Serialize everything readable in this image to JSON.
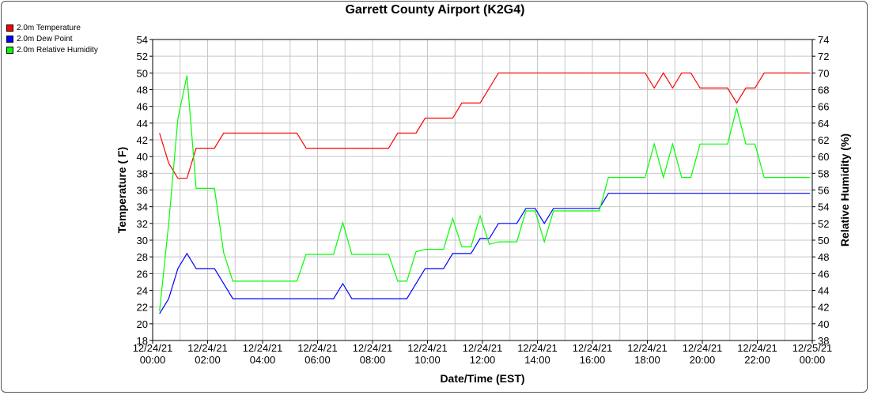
{
  "chart_data": {
    "type": "line",
    "title": "Garrett County Airport (K2G4)",
    "xlabel": "Date/Time (EST)",
    "ylabel_left": "Temperature ( F)",
    "ylabel_right": "Relative Humidity (%)",
    "ylim_left": [
      18,
      54
    ],
    "ylim_right": [
      38,
      74
    ],
    "xlim_hours": [
      0,
      24
    ],
    "grid": true,
    "legend_position": "top-left",
    "x_tick_labels": [
      {
        "date": "12/24/21",
        "time": "00:00"
      },
      {
        "date": "12/24/21",
        "time": "02:00"
      },
      {
        "date": "12/24/21",
        "time": "04:00"
      },
      {
        "date": "12/24/21",
        "time": "06:00"
      },
      {
        "date": "12/24/21",
        "time": "08:00"
      },
      {
        "date": "12/24/21",
        "time": "10:00"
      },
      {
        "date": "12/24/21",
        "time": "12:00"
      },
      {
        "date": "12/24/21",
        "time": "14:00"
      },
      {
        "date": "12/24/21",
        "time": "16:00"
      },
      {
        "date": "12/24/21",
        "time": "18:00"
      },
      {
        "date": "12/24/21",
        "time": "20:00"
      },
      {
        "date": "12/24/21",
        "time": "22:00"
      },
      {
        "date": "12/25/21",
        "time": "00:00"
      }
    ],
    "series": [
      {
        "name": "2.0m Temperature",
        "axis": "left",
        "color": "#ff0000",
        "points": [
          [
            "12/24/21 00:15",
            42.8
          ],
          [
            "12/24/21 00:35",
            39.2
          ],
          [
            "12/24/21 00:55",
            37.4
          ],
          [
            "12/24/21 01:15",
            37.4
          ],
          [
            "12/24/21 01:35",
            41.0
          ],
          [
            "12/24/21 02:15",
            41.0
          ],
          [
            "12/24/21 02:35",
            42.8
          ],
          [
            "12/24/21 05:15",
            42.8
          ],
          [
            "12/24/21 05:35",
            41.0
          ],
          [
            "12/24/21 08:35",
            41.0
          ],
          [
            "12/24/21 08:55",
            42.8
          ],
          [
            "12/24/21 09:35",
            42.8
          ],
          [
            "12/24/21 09:55",
            44.6
          ],
          [
            "12/24/21 10:55",
            44.6
          ],
          [
            "12/24/21 11:15",
            46.4
          ],
          [
            "12/24/21 11:55",
            46.4
          ],
          [
            "12/24/21 12:35",
            50.0
          ],
          [
            "12/24/21 17:55",
            50.0
          ],
          [
            "12/24/21 18:15",
            48.2
          ],
          [
            "12/24/21 18:35",
            50.0
          ],
          [
            "12/24/21 18:55",
            48.2
          ],
          [
            "12/24/21 19:15",
            50.0
          ],
          [
            "12/24/21 19:35",
            50.0
          ],
          [
            "12/24/21 19:55",
            48.2
          ],
          [
            "12/24/21 20:55",
            48.2
          ],
          [
            "12/24/21 21:15",
            46.4
          ],
          [
            "12/24/21 21:35",
            48.2
          ],
          [
            "12/24/21 21:55",
            48.2
          ],
          [
            "12/24/21 22:15",
            50.0
          ],
          [
            "12/24/21 23:55",
            50.0
          ]
        ]
      },
      {
        "name": "2.0m Dew Point",
        "axis": "left",
        "color": "#0000ff",
        "points": [
          [
            "12/24/21 00:15",
            21.2
          ],
          [
            "12/24/21 00:35",
            23.0
          ],
          [
            "12/24/21 00:55",
            26.6
          ],
          [
            "12/24/21 01:15",
            28.4
          ],
          [
            "12/24/21 01:35",
            26.6
          ],
          [
            "12/24/21 02:15",
            26.6
          ],
          [
            "12/24/21 02:55",
            23.0
          ],
          [
            "12/24/21 06:35",
            23.0
          ],
          [
            "12/24/21 06:55",
            24.8
          ],
          [
            "12/24/21 07:15",
            23.0
          ],
          [
            "12/24/21 09:15",
            23.0
          ],
          [
            "12/24/21 09:55",
            26.6
          ],
          [
            "12/24/21 10:35",
            26.6
          ],
          [
            "12/24/21 10:55",
            28.4
          ],
          [
            "12/24/21 11:35",
            28.4
          ],
          [
            "12/24/21 11:55",
            30.2
          ],
          [
            "12/24/21 12:15",
            30.2
          ],
          [
            "12/24/21 12:35",
            32.0
          ],
          [
            "12/24/21 13:15",
            32.0
          ],
          [
            "12/24/21 13:35",
            33.8
          ],
          [
            "12/24/21 13:55",
            33.8
          ],
          [
            "12/24/21 14:15",
            32.0
          ],
          [
            "12/24/21 14:35",
            33.8
          ],
          [
            "12/24/21 16:15",
            33.8
          ],
          [
            "12/24/21 16:35",
            35.6
          ],
          [
            "12/24/21 23:55",
            35.6
          ]
        ]
      },
      {
        "name": "2.0m Relative Humidity",
        "axis": "right",
        "color": "#00ff00",
        "points": [
          [
            "12/24/21 00:15",
            41.5
          ],
          [
            "12/24/21 00:35",
            52.0
          ],
          [
            "12/24/21 00:55",
            64.5
          ],
          [
            "12/24/21 01:15",
            69.7
          ],
          [
            "12/24/21 01:35",
            56.2
          ],
          [
            "12/24/21 02:15",
            56.2
          ],
          [
            "12/24/21 02:35",
            48.5
          ],
          [
            "12/24/21 02:55",
            45.1
          ],
          [
            "12/24/21 05:15",
            45.1
          ],
          [
            "12/24/21 05:35",
            48.3
          ],
          [
            "12/24/21 06:35",
            48.3
          ],
          [
            "12/24/21 06:55",
            52.1
          ],
          [
            "12/24/21 07:15",
            48.3
          ],
          [
            "12/24/21 08:35",
            48.3
          ],
          [
            "12/24/21 08:55",
            45.1
          ],
          [
            "12/24/21 09:15",
            45.1
          ],
          [
            "12/24/21 09:35",
            48.6
          ],
          [
            "12/24/21 09:55",
            48.9
          ],
          [
            "12/24/21 10:35",
            48.9
          ],
          [
            "12/24/21 10:55",
            52.6
          ],
          [
            "12/24/21 11:15",
            49.2
          ],
          [
            "12/24/21 11:35",
            49.2
          ],
          [
            "12/24/21 11:55",
            52.9
          ],
          [
            "12/24/21 12:15",
            49.5
          ],
          [
            "12/24/21 12:35",
            49.8
          ],
          [
            "12/24/21 13:15",
            49.8
          ],
          [
            "12/24/21 13:35",
            53.5
          ],
          [
            "12/24/21 13:55",
            53.5
          ],
          [
            "12/24/21 14:15",
            49.8
          ],
          [
            "12/24/21 14:35",
            53.5
          ],
          [
            "12/24/21 16:15",
            53.5
          ],
          [
            "12/24/21 16:35",
            57.5
          ],
          [
            "12/24/21 17:55",
            57.5
          ],
          [
            "12/24/21 18:15",
            61.5
          ],
          [
            "12/24/21 18:35",
            57.5
          ],
          [
            "12/24/21 18:55",
            61.5
          ],
          [
            "12/24/21 19:15",
            57.5
          ],
          [
            "12/24/21 19:35",
            57.5
          ],
          [
            "12/24/21 19:55",
            61.5
          ],
          [
            "12/24/21 20:55",
            61.5
          ],
          [
            "12/24/21 21:15",
            65.8
          ],
          [
            "12/24/21 21:35",
            61.5
          ],
          [
            "12/24/21 21:55",
            61.5
          ],
          [
            "12/24/21 22:15",
            57.5
          ],
          [
            "12/24/21 23:55",
            57.5
          ]
        ]
      }
    ]
  }
}
